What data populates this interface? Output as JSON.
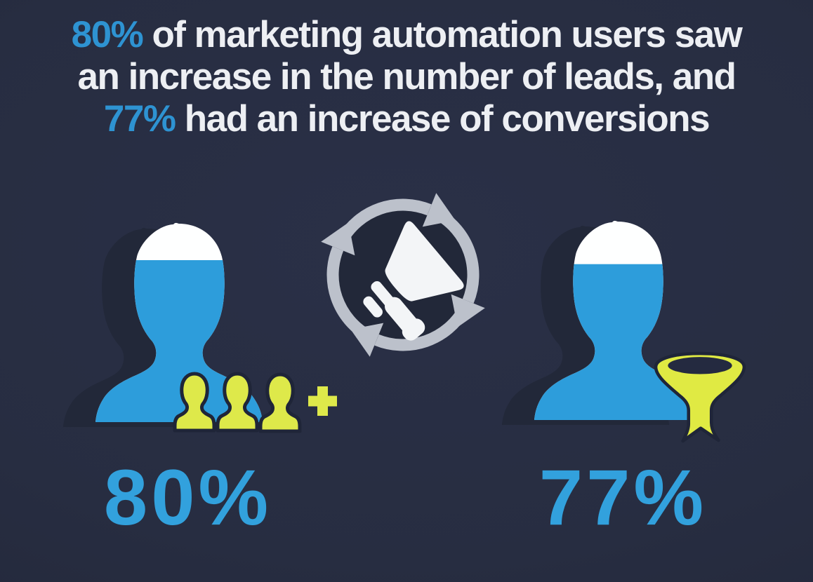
{
  "headline": {
    "stat1": "80%",
    "line1": "of marketing automation users saw",
    "line2": "an increase in the number of leads, and",
    "stat2": "77%",
    "line3": "had an increase of conversions"
  },
  "stats": {
    "left": {
      "value": "80%",
      "fill_percent": 80
    },
    "right": {
      "value": "77%",
      "fill_percent": 77
    }
  },
  "icons": {
    "center": "megaphone-cycle-icon",
    "left_person": "user-silhouette-icon",
    "left_audience": "audience-group-icon",
    "left_plus": "plus-icon",
    "right_person": "user-silhouette-icon",
    "right_funnel": "funnel-icon"
  },
  "colors": {
    "background": "#272d41",
    "headline_text": "#edeff3",
    "headline_accent": "#2e93d2",
    "stat_accent": "#32a1dd",
    "person_blue": "#2d9ddb",
    "person_white": "#feffff",
    "cycle_gray": "#bcc1cb",
    "icon_yellow": "#dee94a",
    "outline_navy": "#1f2538",
    "shadow_navy": "#222839"
  },
  "chart_data": {
    "type": "pictogram",
    "title": "80% of marketing automation users saw an increase in the number of leads, and 77% had an increase of conversions",
    "categories": [
      "Marketing automation users who saw an increase in the number of leads",
      "Marketing automation users who had an increase of conversions"
    ],
    "values": [
      80,
      77
    ],
    "unit": "%",
    "annotations": [
      "80%",
      "77%"
    ],
    "legend_position": "none"
  }
}
